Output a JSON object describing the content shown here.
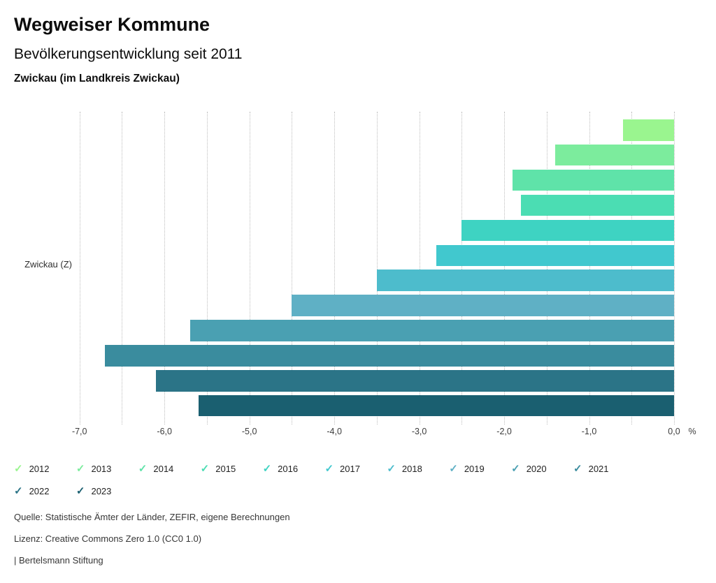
{
  "header": {
    "title": "Wegweiser Kommune",
    "subtitle": "Bevölkerungsentwicklung seit 2011",
    "location": "Zwickau (im Landkreis Zwickau)"
  },
  "chart_data": {
    "type": "bar",
    "orientation": "horizontal",
    "title": "Bevölkerungsentwicklung seit 2011",
    "category_label": "Zwickau (Z)",
    "unit_label": "%",
    "xlim": [
      -7.5,
      0
    ],
    "gridline_values": [
      -7.0,
      -6.5,
      -6.0,
      -5.5,
      -5.0,
      -4.5,
      -4.0,
      -3.5,
      -3.0,
      -2.5,
      -2.0,
      -1.5,
      -1.0,
      -0.5,
      0.0
    ],
    "x_tick_values": [
      -7,
      -6,
      -5,
      -4,
      -3,
      -2,
      -1,
      0
    ],
    "x_tick_labels": [
      "-7,0",
      "-6,0",
      "-5,0",
      "-4,0",
      "-3,0",
      "-2,0",
      "-1,0",
      "0,0"
    ],
    "grid": "dotted-vertical",
    "legend_position": "bottom",
    "series": [
      {
        "year": "2012",
        "value": -0.6,
        "color": "#9af58f"
      },
      {
        "year": "2013",
        "value": -1.4,
        "color": "#7cec9d"
      },
      {
        "year": "2014",
        "value": -1.9,
        "color": "#5fe3a9"
      },
      {
        "year": "2015",
        "value": -1.8,
        "color": "#4bddb3"
      },
      {
        "year": "2016",
        "value": -2.5,
        "color": "#3ed3c2"
      },
      {
        "year": "2017",
        "value": -2.8,
        "color": "#41c8ce"
      },
      {
        "year": "2018",
        "value": -3.5,
        "color": "#4dbccc"
      },
      {
        "year": "2019",
        "value": -4.5,
        "color": "#5fb0c5"
      },
      {
        "year": "2020",
        "value": -5.7,
        "color": "#4aa0b2"
      },
      {
        "year": "2021",
        "value": -6.7,
        "color": "#3a8c9e"
      },
      {
        "year": "2022",
        "value": -6.1,
        "color": "#2b7487"
      },
      {
        "year": "2023",
        "value": -5.6,
        "color": "#1a5f70"
      }
    ]
  },
  "legend": {
    "check_glyph": "✓"
  },
  "footer": {
    "source": "Quelle: Statistische Ämter der Länder, ZEFIR, eigene Berechnungen",
    "license": "Lizenz: Creative Commons Zero 1.0 (CC0 1.0)",
    "attribution": "| Bertelsmann Stiftung"
  }
}
